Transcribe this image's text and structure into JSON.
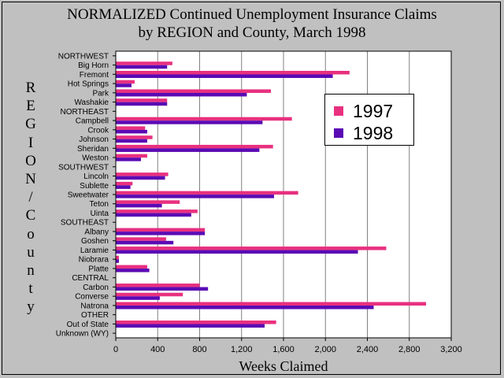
{
  "title": "NORMALIZED Continued Unemployment Insurance Claims",
  "subtitle": "by REGION and County, March 1998",
  "colors": {
    "series_1997": "#e8307f",
    "series_1998": "#5a0ab4",
    "plot_bg": "#ffffff",
    "grid": "#808080"
  },
  "chart_data": {
    "type": "bar",
    "orientation": "horizontal",
    "title": "NORMALIZED Continued Unemployment Insurance Claims by REGION and County, March 1998",
    "xlabel": "Weeks Claimed",
    "ylabel": "REGION/County",
    "xlim": [
      0,
      3200
    ],
    "xticks": [
      0,
      400,
      800,
      1200,
      1600,
      2000,
      2400,
      2800,
      3200
    ],
    "xtick_labels": [
      "0",
      "400",
      "800",
      "1,200",
      "1,600",
      "2,000",
      "2,400",
      "2,800",
      "3,200"
    ],
    "grid": "vertical",
    "legend": "right",
    "categories": [
      "NORTHWEST",
      "Big Horn",
      "Fremont",
      "Hot Springs",
      "Park",
      "Washakie",
      "NORTHEAST",
      "Campbell",
      "Crook",
      "Johnson",
      "Sheridan",
      "Weston",
      "SOUTHWEST",
      "Lincoln",
      "Sublette",
      "Sweetwater",
      "Teton",
      "Uinta",
      "SOUTHEAST",
      "Albany",
      "Goshen",
      "Laramie",
      "Niobrara",
      "Platte",
      "CENTRAL",
      "Carbon",
      "Converse",
      "Natrona",
      "OTHER",
      "Out of State",
      "Unknown (WY)"
    ],
    "series": [
      {
        "name": "1997",
        "values": [
          0,
          540,
          2230,
          180,
          1480,
          490,
          0,
          1680,
          280,
          350,
          1500,
          300,
          0,
          500,
          160,
          1740,
          610,
          780,
          0,
          850,
          480,
          2580,
          30,
          300,
          0,
          800,
          640,
          2960,
          0,
          1530,
          0
        ]
      },
      {
        "name": "1998",
        "values": [
          0,
          490,
          2070,
          150,
          1250,
          490,
          0,
          1400,
          300,
          300,
          1370,
          240,
          0,
          470,
          140,
          1510,
          440,
          720,
          0,
          850,
          550,
          2310,
          30,
          320,
          0,
          880,
          420,
          2460,
          0,
          1420,
          0
        ]
      }
    ]
  }
}
